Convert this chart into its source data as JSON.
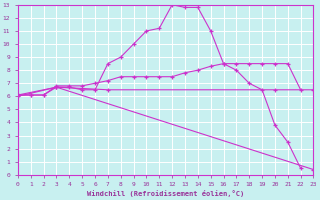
{
  "xlabel": "Windchill (Refroidissement éolien,°C)",
  "bg_color": "#c8f0f0",
  "grid_color": "#ffffff",
  "line_color": "#cc33cc",
  "xlim": [
    0,
    23
  ],
  "ylim": [
    0,
    13
  ],
  "xticks": [
    0,
    1,
    2,
    3,
    4,
    5,
    6,
    7,
    8,
    9,
    10,
    11,
    12,
    13,
    14,
    15,
    16,
    17,
    18,
    19,
    20,
    21,
    22,
    23
  ],
  "yticks": [
    0,
    1,
    2,
    3,
    4,
    5,
    6,
    7,
    8,
    9,
    10,
    11,
    12,
    13
  ],
  "lines": [
    {
      "x": [
        0,
        1,
        2,
        3,
        4,
        5,
        6,
        7,
        8,
        9,
        10,
        11,
        12,
        13,
        14,
        15,
        16,
        17,
        18,
        19,
        20,
        21,
        22,
        23
      ],
      "y": [
        6.1,
        6.1,
        6.1,
        6.7,
        6.7,
        6.5,
        6.5,
        8.5,
        9.0,
        10.0,
        11.0,
        11.2,
        13.0,
        12.8,
        12.8,
        11.0,
        8.5,
        8.0,
        7.0,
        6.5,
        3.8,
        2.5,
        0.5,
        null
      ]
    },
    {
      "x": [
        0,
        1,
        2,
        3,
        4,
        5,
        6,
        7,
        8,
        9,
        10,
        11,
        12,
        13,
        14,
        15,
        16,
        17,
        18,
        19,
        20,
        21,
        22,
        23
      ],
      "y": [
        6.1,
        6.1,
        6.1,
        6.8,
        6.8,
        6.8,
        7.0,
        7.2,
        7.5,
        7.5,
        7.5,
        7.5,
        7.5,
        7.8,
        8.0,
        8.3,
        8.5,
        8.5,
        8.5,
        8.5,
        8.5,
        8.5,
        6.5,
        null
      ]
    },
    {
      "x": [
        0,
        3,
        7,
        20,
        23
      ],
      "y": [
        6.1,
        6.7,
        6.5,
        6.5,
        6.5
      ]
    },
    {
      "x": [
        0,
        3,
        23
      ],
      "y": [
        6.0,
        6.7,
        0.4
      ]
    }
  ],
  "axis_label_color": "#993399",
  "tick_color": "#993399",
  "tick_label_color": "#993399"
}
